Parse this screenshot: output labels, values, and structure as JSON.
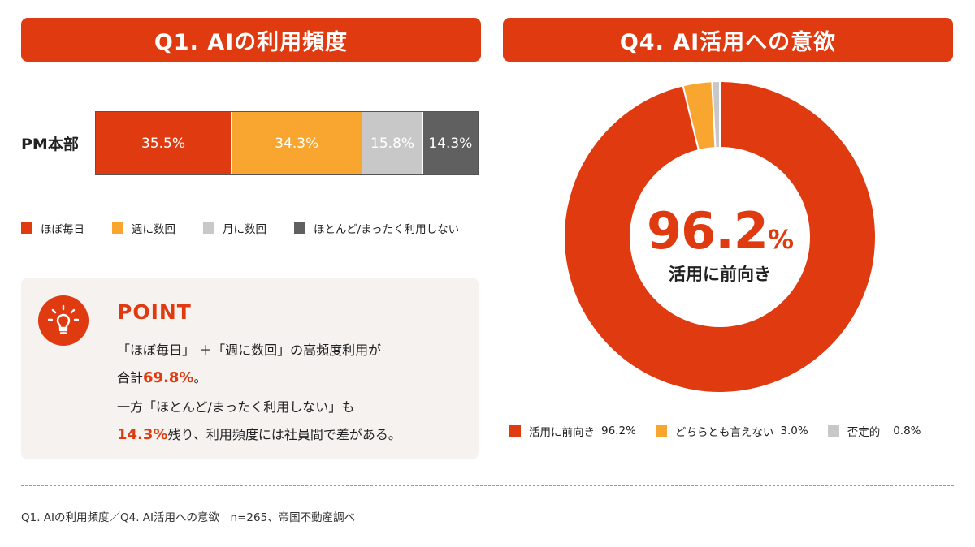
{
  "q1": {
    "title": "Q1. AIの利用頻度",
    "row_label": "PM本部",
    "legend": [
      {
        "label": "ほぼ毎日",
        "color": "#e03a10"
      },
      {
        "label": "週に数回",
        "color": "#f8a630"
      },
      {
        "label": "月に数回",
        "color": "#c8c8c8"
      },
      {
        "label": "ほとんど/まったく利用しない",
        "color": "#606060"
      }
    ]
  },
  "point": {
    "title": "POINT",
    "line1": "「ほぼ毎日」 ＋「週に数回」の高頻度利用が",
    "line2_prefix": "合計",
    "line2_highlight": "69.8%",
    "line2_suffix": "。",
    "line3": "一方「ほとんど/まったく利用しない」も",
    "line4_highlight": "14.3%",
    "line4_suffix": "残り、利用頻度には社員間で差がある。",
    "icon": "lightbulb-icon"
  },
  "q4": {
    "title": "Q4. AI活用への意欲",
    "center_value": "96.2",
    "center_unit": "%",
    "center_label": "活用に前向き",
    "legend": [
      {
        "label": "活用に前向き",
        "value": "96.2%",
        "color": "#e03a10"
      },
      {
        "label": "どちらとも言えない",
        "value": "3.0%",
        "color": "#f8a630"
      },
      {
        "label": "否定的",
        "value": "0.8%",
        "color": "#c8c8c8"
      }
    ]
  },
  "chart_data": [
    {
      "type": "bar",
      "orientation": "horizontal-stacked",
      "categories": [
        "PM本部"
      ],
      "series": [
        {
          "name": "ほぼ毎日",
          "values": [
            35.5
          ],
          "label": "35.5%",
          "color": "#e03a10"
        },
        {
          "name": "週に数回",
          "values": [
            34.3
          ],
          "label": "34.3%",
          "color": "#f8a630"
        },
        {
          "name": "月に数回",
          "values": [
            15.8
          ],
          "label": "15.8%",
          "color": "#c8c8c8"
        },
        {
          "name": "ほとんど/まったく利用しない",
          "values": [
            14.3
          ],
          "label": "14.3%",
          "color": "#606060"
        }
      ],
      "title": "Q1. AIの利用頻度",
      "legend": "bottom"
    },
    {
      "type": "pie",
      "donut": true,
      "categories": [
        "活用に前向き",
        "どちらとも言えない",
        "否定的"
      ],
      "values": [
        96.2,
        3.0,
        0.8
      ],
      "colors": [
        "#e03a10",
        "#f8a630",
        "#c8c8c8"
      ],
      "title": "Q4. AI活用への意欲",
      "legend": "bottom"
    }
  ],
  "footnote": "Q1. AIの利用頻度／Q4. AI活用への意欲　n=265、帝国不動産調べ"
}
